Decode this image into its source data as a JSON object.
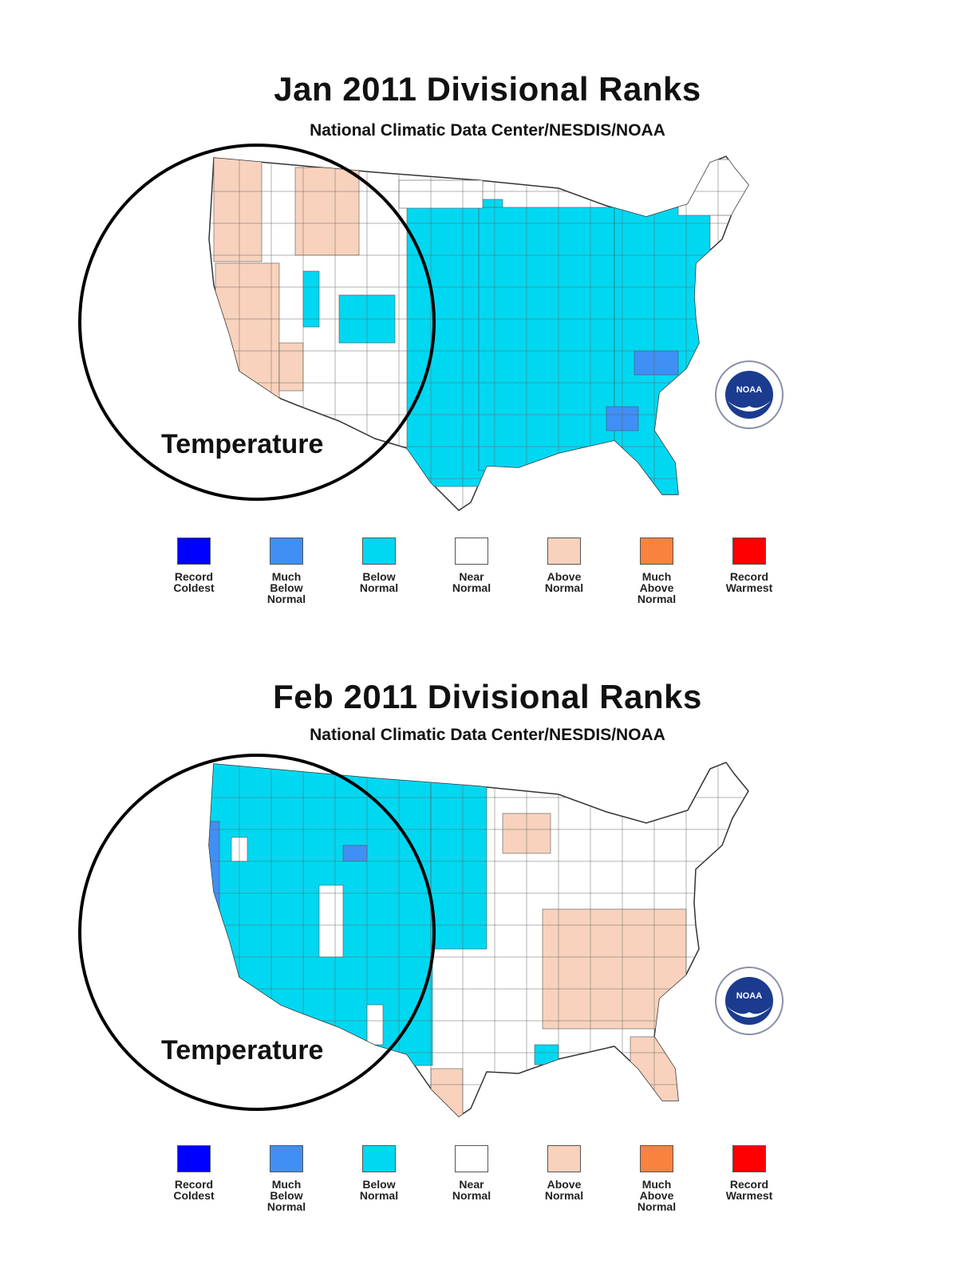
{
  "panels": [
    {
      "title": "Jan 2011 Divisional Ranks",
      "subtitle": "National Climatic Data Center/NESDIS/NOAA",
      "annotation": "Temperature",
      "logo_text": "NOAA",
      "regions": {
        "west": "mixed near/above normal",
        "central": "below normal",
        "east": "below normal",
        "carolinas_georgia": "much below normal"
      }
    },
    {
      "title": "Feb 2011 Divisional Ranks",
      "subtitle": "National Climatic Data Center/NESDIS/NOAA",
      "annotation": "Temperature",
      "logo_text": "NOAA",
      "regions": {
        "west": "below normal",
        "central": "near normal",
        "southeast": "above normal",
        "pacific_coast": "much below normal"
      }
    }
  ],
  "legend": [
    {
      "label": "Record\nColdest",
      "color": "#0000ff"
    },
    {
      "label": "Much\nBelow\nNormal",
      "color": "#3f8ff5"
    },
    {
      "label": "Below\nNormal",
      "color": "#00d8f2"
    },
    {
      "label": "Near\nNormal",
      "color": "#ffffff"
    },
    {
      "label": "Above\nNormal",
      "color": "#f8d2bc"
    },
    {
      "label": "Much\nAbove\nNormal",
      "color": "#f7833f"
    },
    {
      "label": "Record\nWarmest",
      "color": "#ff0000"
    }
  ],
  "colors": {
    "below": "#00d8f2",
    "much_below": "#3f8ff5",
    "above": "#f8d2bc",
    "near": "#ffffff",
    "border": "#333333"
  }
}
